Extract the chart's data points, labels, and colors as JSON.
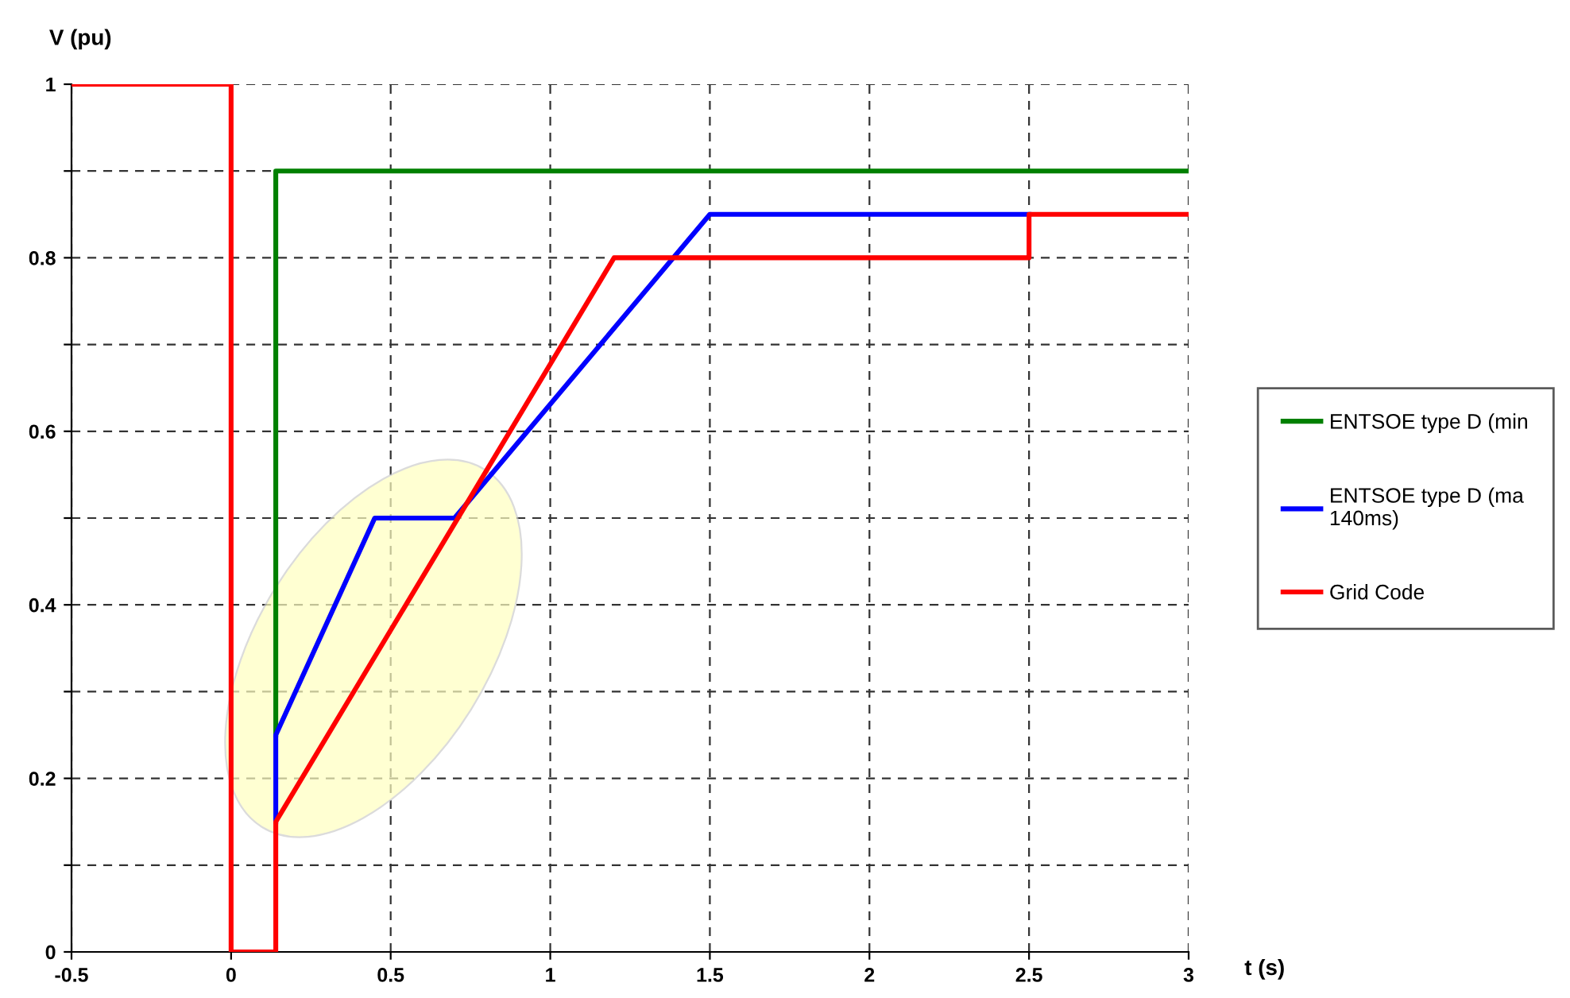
{
  "chart_data": {
    "type": "line",
    "xlabel": "t (s)",
    "ylabel": "V (pu)",
    "xlim": [
      -0.5,
      3
    ],
    "ylim": [
      0,
      1
    ],
    "xticks": [
      -0.5,
      0,
      0.5,
      1,
      1.5,
      2,
      2.5,
      3
    ],
    "yticks": [
      0,
      {
        "value": 0.1,
        "label": null
      },
      0.2,
      {
        "value": 0.3,
        "label": null
      },
      0.4,
      {
        "value": 0.5,
        "label": null
      },
      0.6,
      {
        "value": 0.7,
        "label": null
      },
      0.8,
      {
        "value": 0.9,
        "label": null
      },
      1
    ],
    "grid": true,
    "legend": "right",
    "series": [
      {
        "name": "ENTSOE type D (min",
        "color": "#008000",
        "x": [
          0.14,
          0.14,
          3
        ],
        "values": [
          0.25,
          0.9,
          0.9
        ]
      },
      {
        "name": "ENTSOE type D (ma\n140ms)",
        "color": "#0000ff",
        "x": [
          0.14,
          0.14,
          0.45,
          0.7,
          1.5,
          2.5
        ],
        "values": [
          0.15,
          0.25,
          0.5,
          0.5,
          0.85,
          0.85
        ]
      },
      {
        "name": "Grid Code",
        "color": "#ff0000",
        "x": [
          -0.5,
          0,
          0,
          0.14,
          0.14,
          1.2,
          2.5,
          2.5,
          3
        ],
        "values": [
          1,
          1,
          0,
          0,
          0.15,
          0.8,
          0.8,
          0.85,
          0.85
        ]
      }
    ]
  }
}
